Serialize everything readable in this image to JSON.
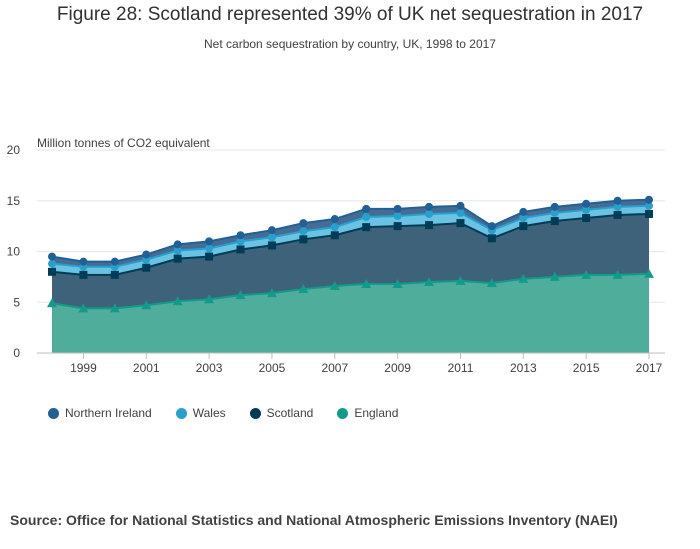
{
  "header": {
    "title": "Figure 28: Scotland represented 39% of UK net sequestration in 2017",
    "subtitle": "Net carbon sequestration by country, UK, 1998 to 2017"
  },
  "source": "Source: Office for National Statistics and National Atmospheric Emissions Inventory (NAEI)",
  "chart_data": {
    "type": "area",
    "title": "Figure 28: Scotland represented 39% of UK net sequestration in 2017",
    "subtitle": "Net carbon sequestration by country, UK, 1998 to 2017",
    "ylabel": "Million tonnes of CO2 equivalent",
    "ylim": [
      0,
      20
    ],
    "yticks": [
      "0",
      "5",
      "10",
      "15",
      "20"
    ],
    "xlim": [
      1998,
      2017
    ],
    "xticks": [
      "1999",
      "2001",
      "2003",
      "2005",
      "2007",
      "2009",
      "2011",
      "2013",
      "2015",
      "2017"
    ],
    "stacked": true,
    "cumulative_values_plotted": true,
    "x": [
      1998,
      1999,
      2000,
      2001,
      2002,
      2003,
      2004,
      2005,
      2006,
      2007,
      2008,
      2009,
      2010,
      2011,
      2012,
      2013,
      2014,
      2015,
      2016,
      2017
    ],
    "legend_position": "bottom-left",
    "series": [
      {
        "name": "England",
        "color": "#129B8A",
        "marker": "triangle",
        "values": [
          4.9,
          4.4,
          4.4,
          4.7,
          5.1,
          5.3,
          5.7,
          5.9,
          6.3,
          6.6,
          6.8,
          6.8,
          7.0,
          7.1,
          6.9,
          7.3,
          7.5,
          7.7,
          7.7,
          7.8
        ]
      },
      {
        "name": "Scotland",
        "color": "#003C57",
        "marker": "square",
        "values": [
          3.1,
          3.3,
          3.3,
          3.7,
          4.2,
          4.2,
          4.5,
          4.7,
          4.9,
          5.0,
          5.6,
          5.7,
          5.6,
          5.7,
          4.4,
          5.2,
          5.5,
          5.6,
          5.9,
          5.9
        ]
      },
      {
        "name": "Wales",
        "color": "#27A0CC",
        "marker": "circle",
        "values": [
          0.8,
          0.8,
          0.8,
          0.8,
          0.8,
          0.8,
          0.8,
          0.8,
          0.8,
          0.8,
          1.0,
          1.0,
          1.1,
          1.0,
          0.8,
          0.8,
          0.8,
          0.8,
          0.8,
          0.8
        ]
      },
      {
        "name": "Northern Ireland",
        "color": "#206095",
        "marker": "circle",
        "values": [
          0.7,
          0.5,
          0.5,
          0.5,
          0.6,
          0.7,
          0.6,
          0.7,
          0.8,
          0.8,
          0.8,
          0.7,
          0.7,
          0.7,
          0.4,
          0.6,
          0.6,
          0.6,
          0.6,
          0.6
        ]
      }
    ]
  }
}
